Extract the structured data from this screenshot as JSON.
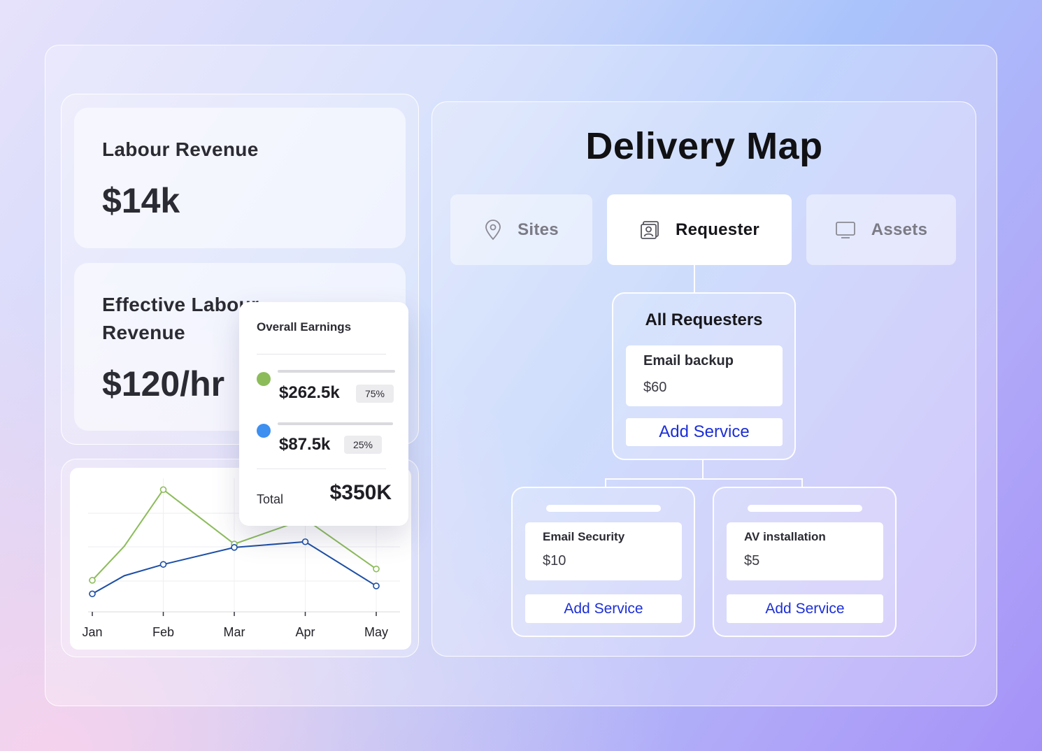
{
  "labour_revenue": {
    "title": "Labour Revenue",
    "value": "$14k"
  },
  "effective_labour_revenue": {
    "title_line1": "Effective Labour",
    "title_line2": "Revenue",
    "value": "$120/hr"
  },
  "earnings_popup": {
    "title": "Overall Earnings",
    "rows": [
      {
        "amount": "$262.5k",
        "percent": "75%",
        "color": "#8cbc5a"
      },
      {
        "amount": "$87.5k",
        "percent": "25%",
        "color": "#3d8ff0"
      }
    ],
    "total_label": "Total",
    "total_value": "$350K"
  },
  "chart_data": {
    "type": "line",
    "x": [
      "Jan",
      "Feb",
      "Mar",
      "Apr",
      "May"
    ],
    "tick_labels": [
      "Jan",
      "Feb",
      "Mar",
      "Apr",
      "May"
    ],
    "series": [
      {
        "color": "#8cbc5a",
        "points": [
          [
            0,
            18
          ],
          [
            0.45,
            48
          ],
          [
            1,
            98
          ],
          [
            2,
            50
          ],
          [
            3,
            72
          ],
          [
            4,
            28
          ]
        ]
      },
      {
        "color": "#1d4fa6",
        "points": [
          [
            0,
            6
          ],
          [
            0.45,
            22
          ],
          [
            1,
            32
          ],
          [
            2,
            47
          ],
          [
            3,
            52
          ],
          [
            4,
            13
          ]
        ]
      }
    ],
    "ylim": [
      0,
      100
    ],
    "grid": true
  },
  "delivery_map": {
    "title": "Delivery Map",
    "tabs": [
      {
        "label": "Sites",
        "icon": "location-pin-icon",
        "active": false
      },
      {
        "label": "Requester",
        "icon": "contact-card-icon",
        "active": true
      },
      {
        "label": "Assets",
        "icon": "monitor-icon",
        "active": false
      }
    ],
    "root": {
      "title": "All Requesters",
      "service": {
        "name": "Email backup",
        "price": "$60"
      },
      "add_label": "Add Service"
    },
    "children": [
      {
        "service": {
          "name": "Email Security",
          "price": "$10"
        },
        "add_label": "Add Service"
      },
      {
        "service": {
          "name": "AV installation",
          "price": "$5"
        },
        "add_label": "Add Service"
      }
    ]
  },
  "colors": {
    "accent_blue": "#1c2fd6",
    "series_green": "#8cbc5a",
    "series_blue": "#1d4fa6"
  }
}
